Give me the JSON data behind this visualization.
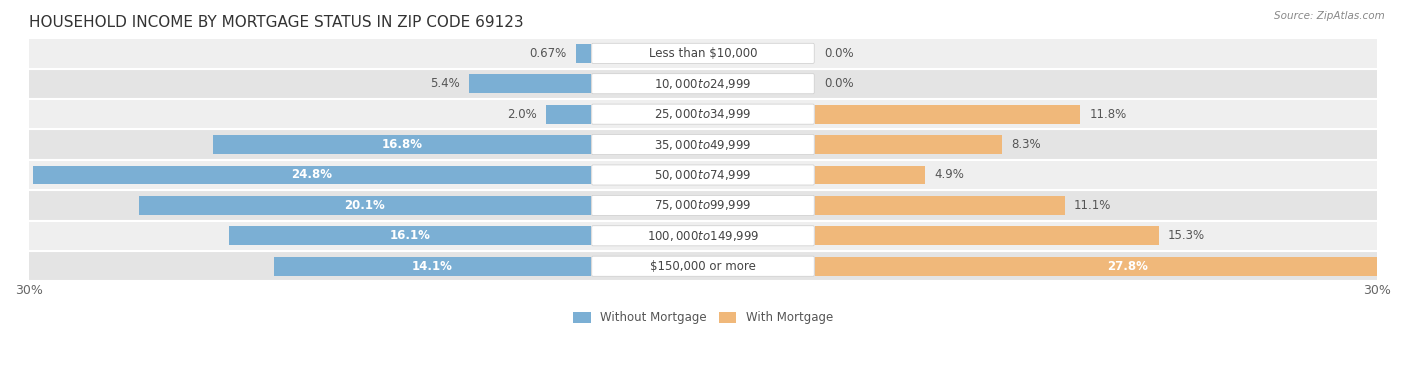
{
  "title": "HOUSEHOLD INCOME BY MORTGAGE STATUS IN ZIP CODE 69123",
  "source": "Source: ZipAtlas.com",
  "categories": [
    "Less than $10,000",
    "$10,000 to $24,999",
    "$25,000 to $34,999",
    "$35,000 to $49,999",
    "$50,000 to $74,999",
    "$75,000 to $99,999",
    "$100,000 to $149,999",
    "$150,000 or more"
  ],
  "without_mortgage": [
    0.67,
    5.4,
    2.0,
    16.8,
    24.8,
    20.1,
    16.1,
    14.1
  ],
  "with_mortgage": [
    0.0,
    0.0,
    11.8,
    8.3,
    4.9,
    11.1,
    15.3,
    27.8
  ],
  "without_mortgage_color": "#7bafd4",
  "with_mortgage_color": "#f0b87a",
  "row_bg_light": "#efefef",
  "row_bg_dark": "#e4e4e4",
  "label_box_color": "#ffffff",
  "xlim": 30.0,
  "label_reserve": 5.0,
  "legend_labels": [
    "Without Mortgage",
    "With Mortgage"
  ],
  "title_fontsize": 11,
  "label_fontsize": 8.5,
  "tick_fontsize": 9,
  "bar_height": 0.62
}
